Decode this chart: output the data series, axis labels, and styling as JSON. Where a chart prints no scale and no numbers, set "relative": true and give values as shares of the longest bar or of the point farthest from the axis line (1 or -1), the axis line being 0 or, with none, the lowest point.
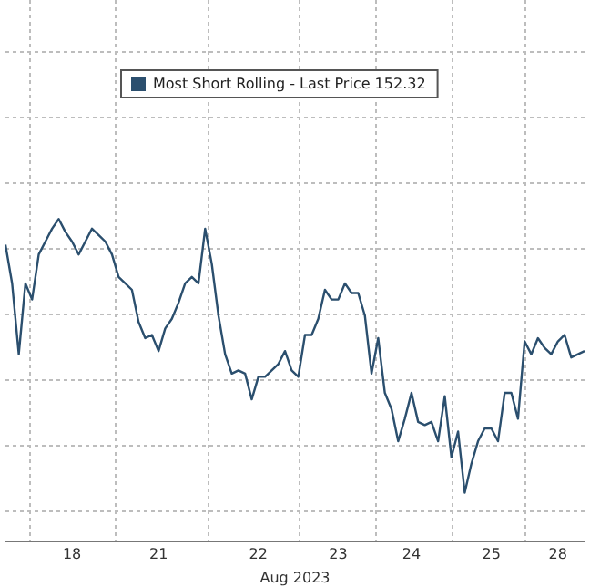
{
  "chart_data": {
    "type": "line",
    "relative": true,
    "xlabel": "Aug 2023",
    "grid": true,
    "legend": "top left",
    "marker": "none",
    "line_style": "solid",
    "categories": [
      null,
      null,
      null,
      null,
      null,
      null,
      null,
      null,
      null,
      null,
      "18",
      null,
      null,
      null,
      null,
      null,
      null,
      null,
      null,
      null,
      null,
      null,
      null,
      "21",
      null,
      null,
      null,
      null,
      null,
      null,
      null,
      null,
      null,
      null,
      null,
      null,
      null,
      null,
      "22",
      null,
      null,
      null,
      null,
      null,
      null,
      null,
      null,
      null,
      null,
      null,
      "23",
      null,
      null,
      null,
      null,
      null,
      null,
      null,
      null,
      null,
      null,
      "24",
      null,
      null,
      null,
      null,
      null,
      null,
      null,
      null,
      null,
      null,
      null,
      "25",
      null,
      null,
      null,
      null,
      null,
      null,
      null,
      null,
      null,
      "28",
      null,
      null,
      null,
      null
    ],
    "series": [
      {
        "name": "Most Short Rolling - Last Price 152.32",
        "color": "#2b4f6e",
        "values": [
          0.92,
          0.8,
          0.58,
          0.8,
          0.75,
          0.89,
          0.93,
          0.97,
          1.0,
          0.96,
          0.93,
          0.89,
          0.93,
          0.97,
          0.95,
          0.93,
          0.89,
          0.82,
          0.8,
          0.78,
          0.68,
          0.63,
          0.64,
          0.59,
          0.66,
          0.69,
          0.74,
          0.8,
          0.82,
          0.8,
          0.97,
          0.86,
          0.7,
          0.58,
          0.52,
          0.53,
          0.52,
          0.44,
          0.51,
          0.51,
          0.53,
          0.55,
          0.59,
          0.53,
          0.51,
          0.64,
          0.64,
          0.69,
          0.78,
          0.75,
          0.75,
          0.8,
          0.77,
          0.77,
          0.7,
          0.52,
          0.63,
          0.46,
          0.41,
          0.31,
          0.38,
          0.46,
          0.37,
          0.36,
          0.37,
          0.31,
          0.45,
          0.26,
          0.34,
          0.15,
          0.24,
          0.31,
          0.35,
          0.35,
          0.31,
          0.46,
          0.46,
          0.38,
          0.62,
          0.58,
          0.63,
          0.6,
          0.58,
          0.62,
          0.64,
          0.57,
          0.58,
          0.59
        ]
      }
    ]
  }
}
